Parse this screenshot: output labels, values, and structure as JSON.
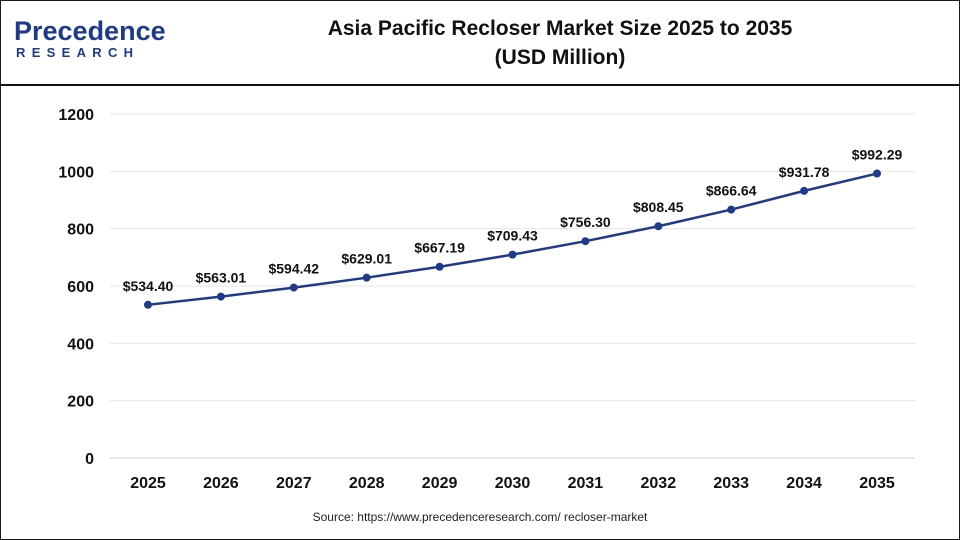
{
  "brand": {
    "name": "Precedence",
    "tagline": "RESEARCH"
  },
  "header": {
    "title_line1": "Asia Pacific Recloser Market Size 2025 to 2035",
    "title_line2": "(USD Million)"
  },
  "source_text": "Source: https://www.precedenceresearch.com/ recloser-market",
  "colors": {
    "line": "#1f3a8a",
    "grid": "#e6e6e6",
    "text": "#111111",
    "brand": "#1e3a8a"
  },
  "chart_data": {
    "type": "line",
    "title": "Asia Pacific Recloser Market Size 2025 to 2035 (USD Million)",
    "xlabel": "",
    "ylabel": "",
    "x": [
      "2025",
      "2026",
      "2027",
      "2028",
      "2029",
      "2030",
      "2031",
      "2032",
      "2033",
      "2034",
      "2035"
    ],
    "values": [
      534.4,
      563.01,
      594.42,
      629.01,
      667.19,
      709.43,
      756.3,
      808.45,
      866.64,
      931.78,
      992.29
    ],
    "data_labels": [
      "$534.40",
      "$563.01",
      "$594.42",
      "$629.01",
      "$667.19",
      "$709.43",
      "$756.30",
      "$808.45",
      "$866.64",
      "$931.78",
      "$992.29"
    ],
    "y_ticks": [
      0,
      200,
      400,
      600,
      800,
      1000,
      1200
    ],
    "ylim": [
      0,
      1200
    ],
    "grid": true,
    "legend": "none"
  }
}
